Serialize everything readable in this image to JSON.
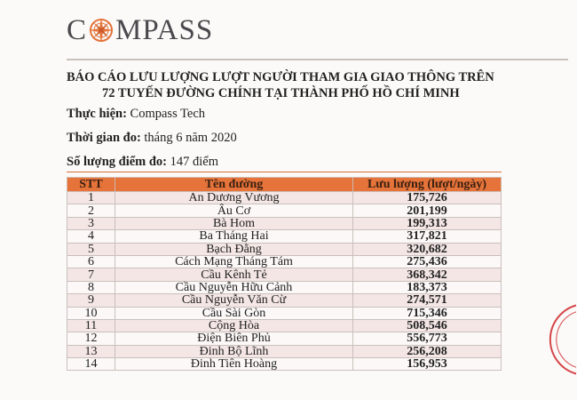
{
  "logo": {
    "text": "COMPASS",
    "accent": "#e5733a"
  },
  "title": {
    "line1": "BÁO CÁO LƯU LƯỢNG LƯỢT NGƯỜI THAM GIA GIAO THÔNG TRÊN",
    "line2": "72 TUYẾN ĐƯỜNG CHÍNH TẠI THÀNH PHỐ HỒ CHÍ MINH"
  },
  "meta": {
    "performer_label": "Thực hiện:",
    "performer": "Compass Tech",
    "time_label": "Thời gian đo:",
    "time": "tháng 6 năm 2020",
    "points_label": "Số lượng điểm đo:",
    "points": "147 điểm"
  },
  "table": {
    "headers": [
      "STT",
      "Tên đường",
      "Lưu lượng (lượt/ngày)"
    ],
    "rows": [
      [
        "1",
        "An Dương Vương",
        "175,726"
      ],
      [
        "2",
        "Âu Cơ",
        "201,199"
      ],
      [
        "3",
        "Bà Hom",
        "199,313"
      ],
      [
        "4",
        "Ba Tháng Hai",
        "317,821"
      ],
      [
        "5",
        "Bạch Đằng",
        "320,682"
      ],
      [
        "6",
        "Cách Mạng Tháng Tám",
        "275,436"
      ],
      [
        "7",
        "Cầu Kênh Tẻ",
        "368,342"
      ],
      [
        "8",
        "Cầu Nguyễn Hữu Cảnh",
        "183,373"
      ],
      [
        "9",
        "Cầu Nguyễn Văn Cừ",
        "274,571"
      ],
      [
        "10",
        "Cầu Sài Gòn",
        "715,346"
      ],
      [
        "11",
        "Cộng Hòa",
        "508,546"
      ],
      [
        "12",
        "Điện Biên Phủ",
        "556,773"
      ],
      [
        "13",
        "Đinh Bộ Lĩnh",
        "256,208"
      ],
      [
        "14",
        "Đinh Tiên Hoàng",
        "156,953"
      ]
    ]
  },
  "watermark": "COMPASS"
}
